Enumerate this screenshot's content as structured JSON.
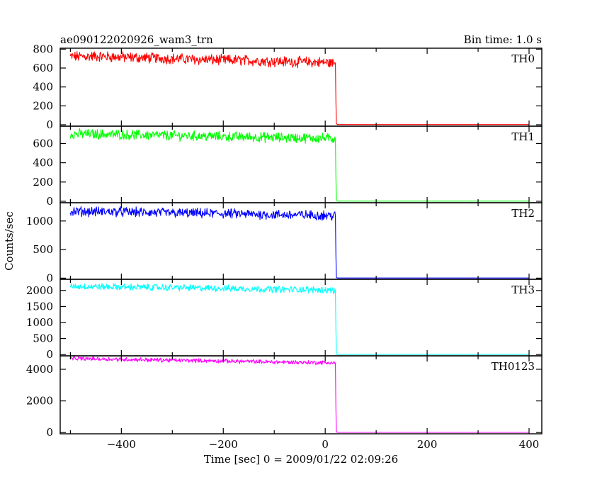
{
  "chart_data": {
    "type": "line",
    "title": "ae090122020926_wam3_trn",
    "subtitle": "Bin time: 1.0 s",
    "xlabel": "Time [sec] 0 = 2009/01/22 02:09:26",
    "ylabel": "Counts/sec",
    "xlim": [
      -520,
      425
    ],
    "x_ticks": [
      -400,
      -200,
      0,
      200,
      400
    ],
    "grid": false,
    "series": [
      {
        "name": "TH0",
        "color": "#ff0000",
        "ylim": [
          -15,
          810
        ],
        "y_ticks": [
          0,
          200,
          400,
          600,
          800
        ],
        "x": [
          -500,
          -450,
          -400,
          -350,
          -300,
          -250,
          -200,
          -150,
          -100,
          -50,
          0,
          10,
          20,
          21,
          22,
          24,
          100,
          200,
          300,
          400
        ],
        "y": [
          720,
          725,
          715,
          708,
          700,
          690,
          685,
          680,
          670,
          665,
          660,
          655,
          650,
          250,
          10,
          2,
          2,
          2,
          2,
          2
        ],
        "noise": 60
      },
      {
        "name": "TH1",
        "color": "#00ff00",
        "ylim": [
          -15,
          780
        ],
        "y_ticks": [
          0,
          200,
          400,
          600
        ],
        "x": [
          -500,
          -450,
          -400,
          -350,
          -300,
          -250,
          -200,
          -150,
          -100,
          -50,
          0,
          10,
          20,
          21,
          22,
          24,
          100,
          200,
          300,
          400
        ],
        "y": [
          700,
          698,
          692,
          688,
          682,
          678,
          672,
          668,
          662,
          658,
          655,
          652,
          650,
          250,
          10,
          2,
          2,
          2,
          2,
          2
        ],
        "noise": 55
      },
      {
        "name": "TH2",
        "color": "#0000ff",
        "ylim": [
          -20,
          1320
        ],
        "y_ticks": [
          0,
          500,
          1000
        ],
        "x": [
          -500,
          -450,
          -400,
          -350,
          -300,
          -250,
          -200,
          -150,
          -100,
          -50,
          0,
          10,
          20,
          21,
          22,
          24,
          100,
          200,
          300,
          400
        ],
        "y": [
          1170,
          1165,
          1160,
          1150,
          1140,
          1135,
          1130,
          1120,
          1110,
          1105,
          1100,
          1095,
          1090,
          400,
          10,
          3,
          3,
          3,
          3,
          3
        ],
        "noise": 90
      },
      {
        "name": "TH3",
        "color": "#00ffff",
        "ylim": [
          -40,
          2350
        ],
        "y_ticks": [
          0,
          500,
          1000,
          1500,
          2000
        ],
        "x": [
          -500,
          -450,
          -400,
          -350,
          -300,
          -250,
          -200,
          -150,
          -100,
          -50,
          0,
          10,
          20,
          21,
          22,
          24,
          100,
          200,
          300,
          400
        ],
        "y": [
          2130,
          2120,
          2110,
          2100,
          2090,
          2075,
          2065,
          2055,
          2040,
          2030,
          2020,
          2010,
          2000,
          800,
          20,
          5,
          5,
          5,
          5,
          5
        ],
        "noise": 110
      },
      {
        "name": "TH0123",
        "color": "#ff00ff",
        "ylim": [
          -80,
          4850
        ],
        "y_ticks": [
          0,
          2000,
          4000
        ],
        "x": [
          -500,
          -450,
          -400,
          -350,
          -300,
          -250,
          -200,
          -150,
          -100,
          -50,
          0,
          10,
          20,
          21,
          22,
          24,
          100,
          200,
          300,
          400
        ],
        "y": [
          4680,
          4660,
          4630,
          4600,
          4570,
          4550,
          4520,
          4490,
          4460,
          4440,
          4420,
          4410,
          4400,
          1500,
          30,
          10,
          10,
          10,
          10,
          10
        ],
        "noise": 140
      }
    ]
  }
}
